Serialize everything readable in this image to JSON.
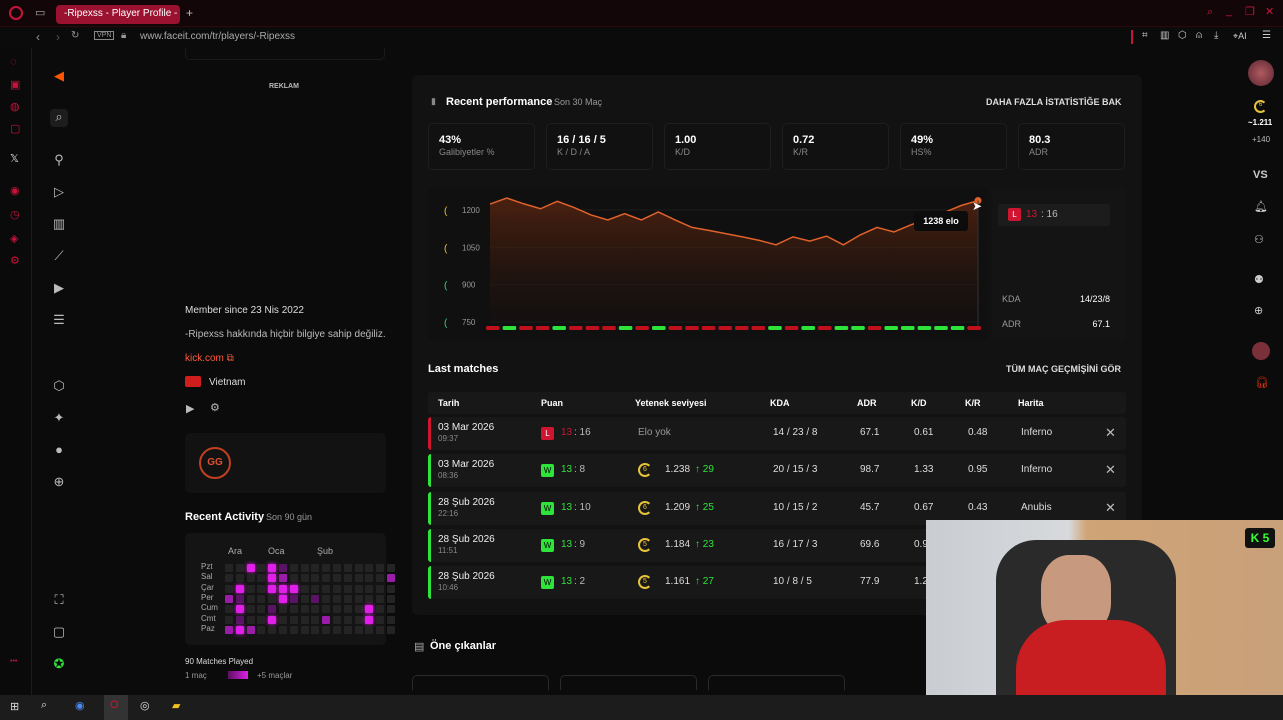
{
  "browser": {
    "tab_title": "-Ripexss - Player Profile -",
    "url": "www.faceit.com/tr/players/-Ripexss",
    "vpn": "VPN",
    "ai": "AI"
  },
  "sidebar_profile": {
    "ad_label": "REKLAM",
    "member_since": "Member since 23 Nis 2022",
    "bio": "-Ripexss hakkında hiçbir bilgiye sahip değiliz.",
    "link": "kick.com",
    "country": "Vietnam"
  },
  "activity": {
    "title": "Recent Activity",
    "subtitle": "Son 90 gün",
    "months": [
      "Ara",
      "Oca",
      "Şub"
    ],
    "days": [
      "Pzt",
      "Sal",
      "Çar",
      "Per",
      "Cum",
      "Cmt",
      "Paz"
    ],
    "matches_played": "90 Matches Played",
    "legend_min": "1 maç",
    "legend_max": "+5 maçlar",
    "grid": [
      [
        0,
        0,
        3,
        0,
        3,
        1,
        0,
        0,
        0,
        0,
        0,
        0,
        0,
        0,
        0,
        0
      ],
      [
        0,
        0,
        0,
        0,
        3,
        2,
        0,
        0,
        0,
        0,
        0,
        0,
        0,
        0,
        0,
        2
      ],
      [
        0,
        3,
        0,
        0,
        3,
        3,
        3,
        0,
        0,
        0,
        0,
        0,
        0,
        0,
        0,
        0
      ],
      [
        2,
        1,
        0,
        0,
        0,
        3,
        1,
        0,
        1,
        0,
        0,
        0,
        0,
        0,
        0,
        0
      ],
      [
        0,
        3,
        0,
        0,
        1,
        0,
        0,
        0,
        0,
        0,
        0,
        0,
        0,
        3,
        0,
        0
      ],
      [
        0,
        1,
        0,
        0,
        3,
        0,
        0,
        0,
        0,
        2,
        0,
        0,
        0,
        3,
        0,
        0
      ],
      [
        2,
        3,
        2,
        0,
        0,
        0,
        0,
        0,
        0,
        0,
        0,
        0,
        0,
        0,
        0,
        0
      ]
    ]
  },
  "performance": {
    "title": "Recent performance",
    "subtitle": "Son 30 Maç",
    "more_link": "DAHA FAZLA İSTATİSTİĞE BAK",
    "stats": [
      {
        "value": "43%",
        "label": "Galibiyetler %"
      },
      {
        "value": "16 / 16 / 5",
        "label": "K / D / A"
      },
      {
        "value": "1.00",
        "label": "K/D"
      },
      {
        "value": "0.72",
        "label": "K/R"
      },
      {
        "value": "49%",
        "label": "HS%"
      },
      {
        "value": "80.3",
        "label": "ADR"
      }
    ],
    "tooltip": "1238 elo",
    "hover_score_a": "13",
    "hover_score_b": ": 16",
    "hover_kda_label": "KDA",
    "hover_kda": "14/23/8",
    "hover_adr_label": "ADR",
    "hover_adr": "67.1"
  },
  "chart_data": {
    "type": "line",
    "y_ticks": [
      "1200",
      "1050",
      "900",
      "750"
    ],
    "ylim": [
      750,
      1260
    ],
    "elo": [
      1224,
      1248,
      1225,
      1205,
      1235,
      1210,
      1180,
      1160,
      1185,
      1160,
      1192,
      1160,
      1130,
      1118,
      1105,
      1092,
      1078,
      1060,
      1092,
      1075,
      1095,
      1060,
      1100,
      1130,
      1112,
      1140,
      1165,
      1190,
      1218,
      1238
    ],
    "results": [
      "L",
      "W",
      "L",
      "L",
      "W",
      "L",
      "L",
      "L",
      "W",
      "L",
      "W",
      "L",
      "L",
      "L",
      "L",
      "L",
      "L",
      "W",
      "L",
      "W",
      "L",
      "W",
      "W",
      "L",
      "W",
      "W",
      "W",
      "W",
      "W",
      "L"
    ],
    "colors": {
      "line": "#e0622a",
      "win": "#2ee43a",
      "loss": "#c0101c"
    }
  },
  "last_matches": {
    "title": "Last matches",
    "all_link": "TÜM MAÇ GEÇMİŞİNİ GÖR",
    "headers": [
      "Tarih",
      "Puan",
      "Yetenek seviyesi",
      "KDA",
      "ADR",
      "K/D",
      "K/R",
      "Harita"
    ],
    "rows": [
      {
        "date": "03 Mar 2026",
        "time": "09:37",
        "result": "L",
        "badge": "L",
        "score_a": "13",
        "score_b": ": 16",
        "level": "",
        "elo": "Elo yok",
        "delta": "",
        "kda": "14 / 23 / 8",
        "adr": "67.1",
        "kd": "0.61",
        "kr": "0.48",
        "map": "Inferno"
      },
      {
        "date": "03 Mar 2026",
        "time": "08:36",
        "result": "W",
        "badge": "W",
        "score_a": "13",
        "score_b": ": 8",
        "level": "6",
        "elo": "1.238",
        "delta": "↑ 29",
        "kda": "20 / 15 / 3",
        "adr": "98.7",
        "kd": "1.33",
        "kr": "0.95",
        "map": "Inferno"
      },
      {
        "date": "28 Şub 2026",
        "time": "22:16",
        "result": "W",
        "badge": "W",
        "score_a": "13",
        "score_b": ": 10",
        "level": "6",
        "elo": "1.209",
        "delta": "↑ 25",
        "kda": "10 / 15 / 2",
        "adr": "45.7",
        "kd": "0.67",
        "kr": "0.43",
        "map": "Anubis"
      },
      {
        "date": "28 Şub 2026",
        "time": "11:51",
        "result": "W",
        "badge": "W",
        "score_a": "13",
        "score_b": ": 9",
        "level": "5",
        "elo": "1.184",
        "delta": "↑ 23",
        "kda": "16 / 17 / 3",
        "adr": "69.6",
        "kd": "0.9",
        "kr": "",
        "map": ""
      },
      {
        "date": "28 Şub 2026",
        "time": "10:46",
        "result": "W",
        "badge": "W",
        "score_a": "13",
        "score_b": ": 2",
        "level": "5",
        "elo": "1.161",
        "delta": "↑ 27",
        "kda": "10 / 8 / 5",
        "adr": "77.9",
        "kd": "1.2",
        "kr": "",
        "map": ""
      }
    ]
  },
  "highlights": {
    "title": "Öne çıkanlar"
  },
  "right_rail": {
    "level": "6",
    "elo": "~1.211",
    "delta": "+140",
    "vs": "VS"
  },
  "webcam": {
    "badge": "5"
  }
}
